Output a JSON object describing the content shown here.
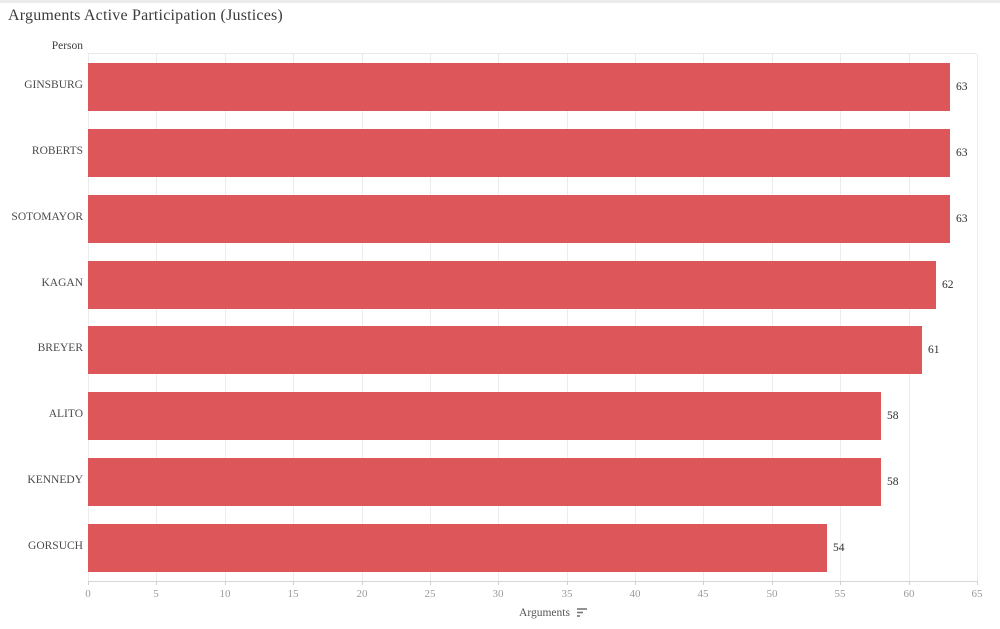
{
  "chart_data": {
    "type": "bar",
    "orientation": "horizontal",
    "title": "Arguments Active Participation (Justices)",
    "row_header": "Person",
    "xlabel": "Arguments",
    "categories": [
      "GINSBURG",
      "ROBERTS",
      "SOTOMAYOR",
      "KAGAN",
      "BREYER",
      "ALITO",
      "KENNEDY",
      "GORSUCH"
    ],
    "values": [
      63,
      63,
      63,
      62,
      61,
      58,
      58,
      54
    ],
    "xlim": [
      0,
      65
    ],
    "x_ticks": [
      0,
      5,
      10,
      15,
      20,
      25,
      30,
      35,
      40,
      45,
      50,
      55,
      60,
      65
    ],
    "grid": "vertical",
    "legend": "none",
    "bar_color": "#dd575a",
    "sort_icon": "sort-descending-icon"
  }
}
